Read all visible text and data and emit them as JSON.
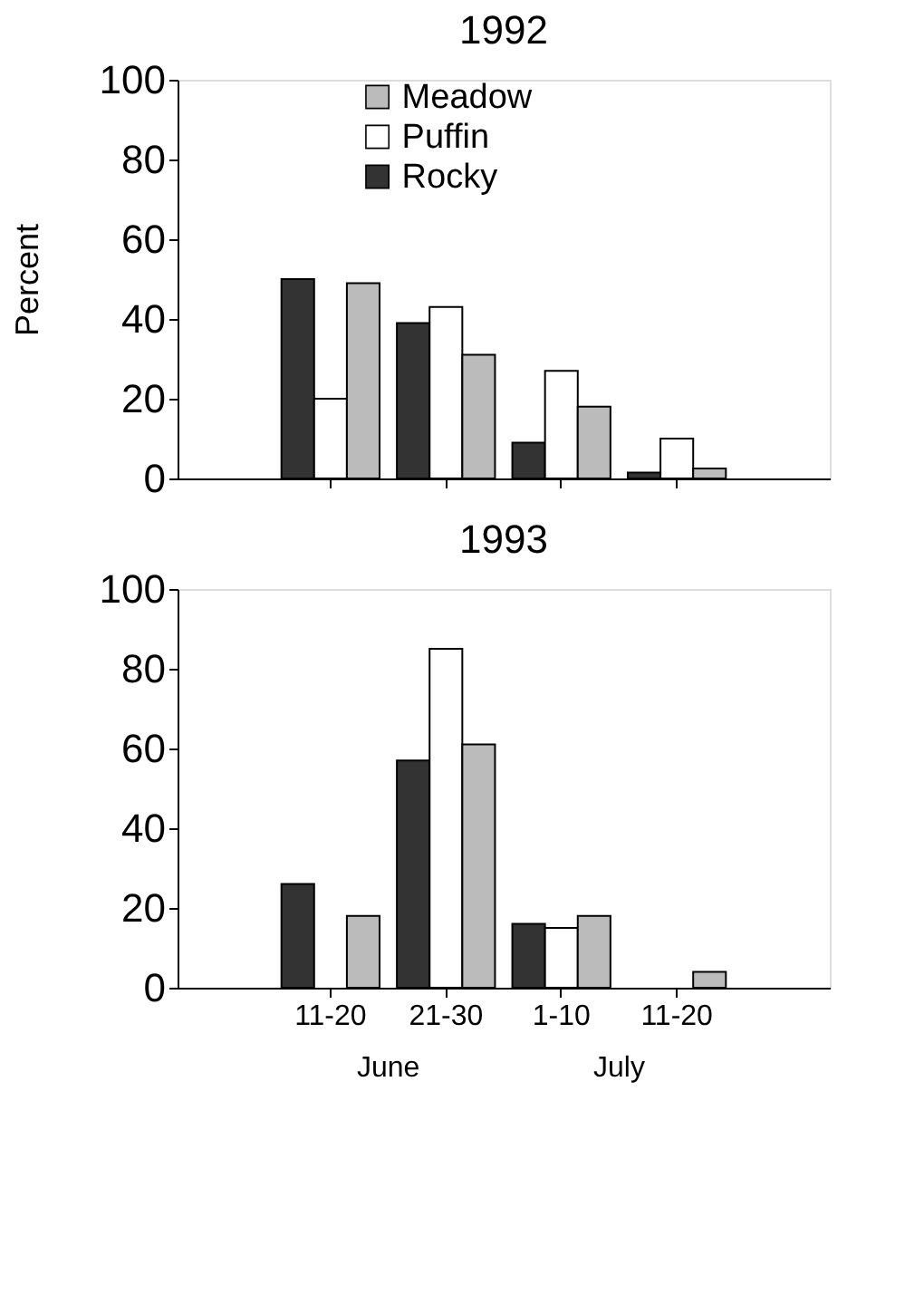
{
  "chart_data": [
    {
      "type": "bar",
      "title": "1992",
      "ylabel": "Percent",
      "categories": [
        null,
        null,
        null,
        null
      ],
      "ylim": [
        0,
        100
      ],
      "yticks": [
        0,
        20,
        40,
        60,
        80,
        100
      ],
      "grid": false,
      "legend": "top left",
      "tick_labels": "y",
      "series": [
        {
          "name": "Rocky",
          "color": "#333333",
          "values": [
            50,
            39,
            9,
            1.5
          ]
        },
        {
          "name": "Puffin",
          "color": "#ffffff",
          "values": [
            20,
            43,
            27,
            10
          ]
        },
        {
          "name": "Meadow",
          "color": "#bbbbbb",
          "values": [
            49,
            31,
            18,
            2.5
          ]
        }
      ]
    },
    {
      "type": "bar",
      "title": "1993",
      "categories": [
        "11-20",
        "21-30",
        "1-10",
        "11-20"
      ],
      "ylim": [
        0,
        100
      ],
      "yticks": [
        0,
        20,
        40,
        60,
        80,
        100
      ],
      "grid": false,
      "legend": false,
      "annotations": [
        "June",
        "July"
      ],
      "series": [
        {
          "name": "Rocky",
          "color": "#333333",
          "values": [
            26,
            57,
            16,
            0
          ]
        },
        {
          "name": "Puffin",
          "color": "#ffffff",
          "values": [
            0,
            85,
            15,
            0
          ]
        },
        {
          "name": "Meadow",
          "color": "#bbbbbb",
          "values": [
            18,
            61,
            18,
            4
          ]
        }
      ]
    }
  ]
}
